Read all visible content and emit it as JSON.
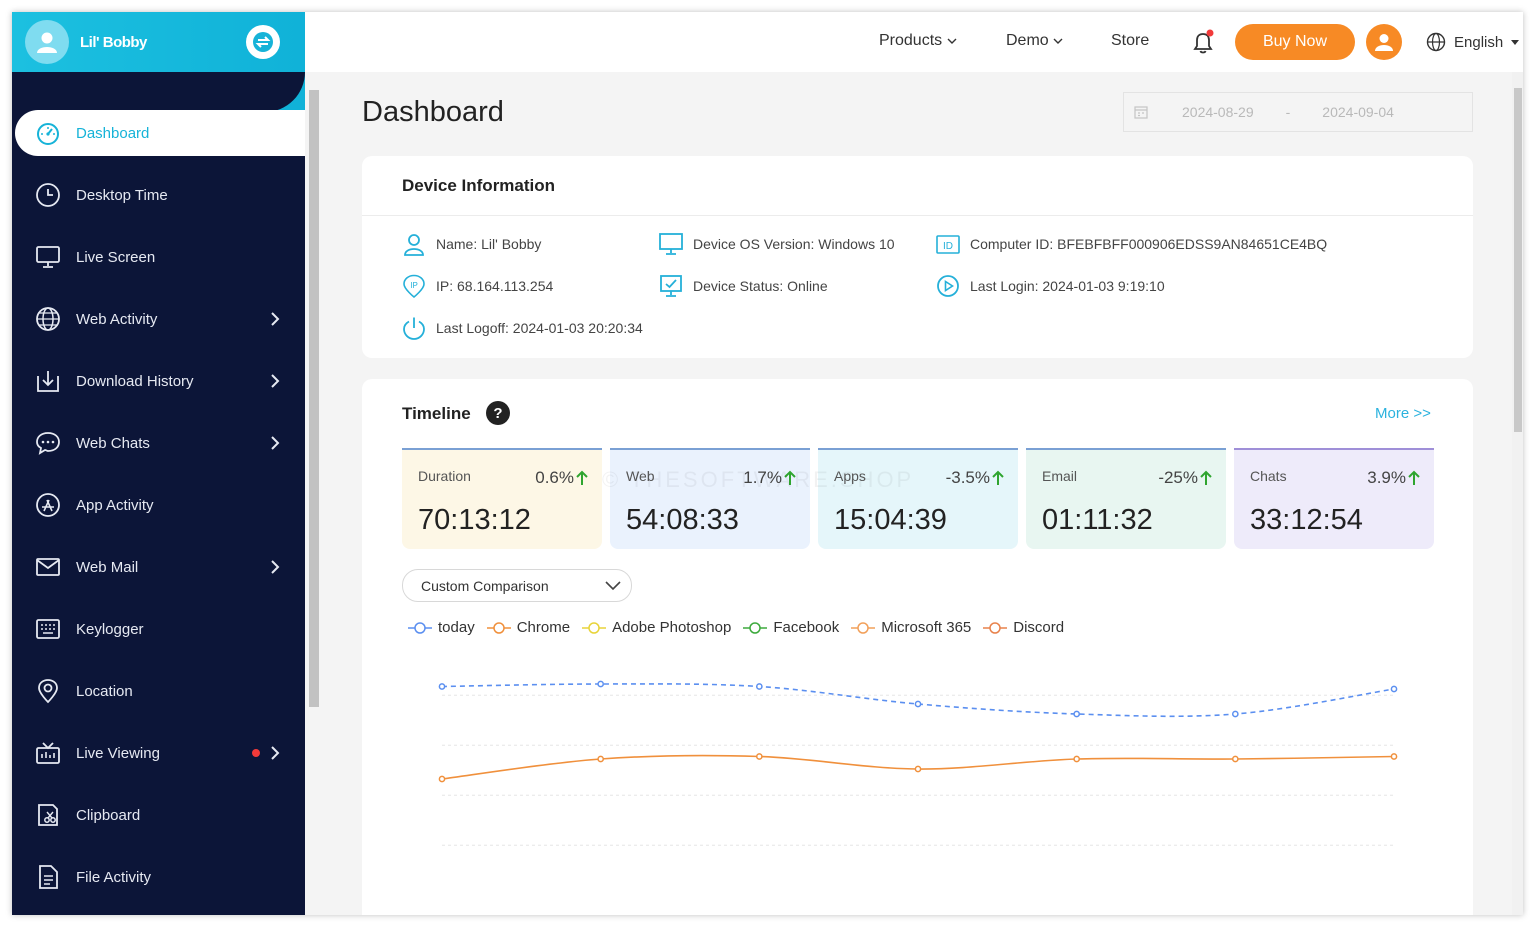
{
  "sidebar": {
    "user_name": "Lil' Bobby",
    "items": [
      {
        "label": "Dashboard",
        "icon": "speedometer-icon",
        "active": true
      },
      {
        "label": "Desktop Time",
        "icon": "clock-icon"
      },
      {
        "label": "Live Screen",
        "icon": "monitor-icon"
      },
      {
        "label": "Web Activity",
        "icon": "globe-icon",
        "chevron": true
      },
      {
        "label": "Download History",
        "icon": "download-icon",
        "chevron": true
      },
      {
        "label": "Web Chats",
        "icon": "chat-icon",
        "chevron": true
      },
      {
        "label": "App Activity",
        "icon": "app-store-icon"
      },
      {
        "label": "Web Mail",
        "icon": "mail-icon",
        "chevron": true
      },
      {
        "label": "Keylogger",
        "icon": "keyboard-icon"
      },
      {
        "label": "Location",
        "icon": "location-pin-icon"
      },
      {
        "label": "Live Viewing",
        "icon": "camera-icon",
        "chevron": true,
        "dot": true
      },
      {
        "label": "Clipboard",
        "icon": "clipboard-icon"
      },
      {
        "label": "File Activity",
        "icon": "file-icon"
      }
    ]
  },
  "topbar": {
    "products": "Products",
    "demo": "Demo",
    "store": "Store",
    "buy_now": "Buy Now",
    "language": "English"
  },
  "main": {
    "title": "Dashboard",
    "date_start": "2024-08-29",
    "date_sep": "-",
    "date_end": "2024-09-04"
  },
  "device": {
    "title": "Device Information",
    "name": "Name: Lil' Bobby",
    "os": "Device OS Version: Windows 10",
    "computer_id": "Computer ID: BFEBFBFF000906EDSS9AN84651CE4BQ",
    "ip": "IP: 68.164.113.254",
    "status": "Device Status: Online",
    "last_login": "Last Login: 2024-01-03 9:19:10",
    "last_logoff": "Last Logoff: 2024-01-03 20:20:34"
  },
  "timeline": {
    "title": "Timeline",
    "help": "?",
    "more": "More >>",
    "stats": [
      {
        "name": "Duration",
        "pct": "0.6%",
        "value": "70:13:12",
        "bg": "#fdf7e6",
        "border": "#7aa0d4"
      },
      {
        "name": "Web",
        "pct": "1.7%",
        "value": "54:08:33",
        "bg": "#eaf2fd",
        "border": "#7aa0d4"
      },
      {
        "name": "Apps",
        "pct": "-3.5%",
        "value": "15:04:39",
        "bg": "#e5f6fa",
        "border": "#7aa0d4"
      },
      {
        "name": "Email",
        "pct": "-25%",
        "value": "01:11:32",
        "bg": "#e8f6f1",
        "border": "#7aa0d4"
      },
      {
        "name": "Chats",
        "pct": "3.9%",
        "value": "33:12:54",
        "bg": "#eeebfa",
        "border": "#9f8fd8"
      }
    ],
    "compare": "Custom Comparison",
    "watermark": "© THESOFTWARE.SHOP"
  },
  "chart_data": {
    "type": "line",
    "legend": [
      "today",
      "Chrome",
      "Adobe Photoshop",
      "Facebook",
      "Microsoft 365",
      "Discord"
    ],
    "legend_colors": [
      "#5b8ff0",
      "#f0903c",
      "#e8d43a",
      "#3daa3d",
      "#f2a05a",
      "#e8824c"
    ],
    "x": [
      1,
      2,
      3,
      4,
      5,
      6,
      7
    ],
    "ylim": [
      0,
      100
    ],
    "series": [
      {
        "name": "today",
        "values": [
          89,
          90,
          89,
          82,
          78,
          78,
          88
        ],
        "color": "#5b8ff0",
        "dashed": true
      },
      {
        "name": "Chrome",
        "values": [
          52,
          60,
          61,
          56,
          60,
          60,
          61
        ],
        "color": "#f0903c",
        "dashed": false
      }
    ]
  }
}
